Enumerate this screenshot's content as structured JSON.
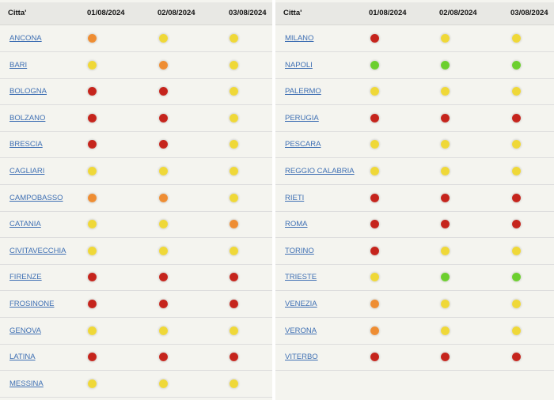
{
  "colors": {
    "red": "#c5241c",
    "orange": "#ee8d33",
    "yellow": "#efd838",
    "green": "#6ccf2e"
  },
  "header": {
    "city": "Citta'",
    "dates": [
      "01/08/2024",
      "02/08/2024",
      "03/08/2024"
    ]
  },
  "left": [
    {
      "city": "ANCONA",
      "levels": [
        "orange",
        "yellow",
        "yellow"
      ]
    },
    {
      "city": "BARI",
      "levels": [
        "yellow",
        "orange",
        "yellow"
      ]
    },
    {
      "city": "BOLOGNA",
      "levels": [
        "red",
        "red",
        "yellow"
      ]
    },
    {
      "city": "BOLZANO",
      "levels": [
        "red",
        "red",
        "yellow"
      ]
    },
    {
      "city": "BRESCIA",
      "levels": [
        "red",
        "red",
        "yellow"
      ]
    },
    {
      "city": "CAGLIARI",
      "levels": [
        "yellow",
        "yellow",
        "yellow"
      ]
    },
    {
      "city": "CAMPOBASSO",
      "levels": [
        "orange",
        "orange",
        "yellow"
      ]
    },
    {
      "city": "CATANIA",
      "levels": [
        "yellow",
        "yellow",
        "orange"
      ]
    },
    {
      "city": "CIVITAVECCHIA",
      "levels": [
        "yellow",
        "yellow",
        "yellow"
      ]
    },
    {
      "city": "FIRENZE",
      "levels": [
        "red",
        "red",
        "red"
      ]
    },
    {
      "city": "FROSINONE",
      "levels": [
        "red",
        "red",
        "red"
      ]
    },
    {
      "city": "GENOVA",
      "levels": [
        "yellow",
        "yellow",
        "yellow"
      ]
    },
    {
      "city": "LATINA",
      "levels": [
        "red",
        "red",
        "red"
      ]
    },
    {
      "city": "MESSINA",
      "levels": [
        "yellow",
        "yellow",
        "yellow"
      ]
    }
  ],
  "right": [
    {
      "city": "MILANO",
      "levels": [
        "red",
        "yellow",
        "yellow"
      ]
    },
    {
      "city": "NAPOLI",
      "levels": [
        "green",
        "green",
        "green"
      ]
    },
    {
      "city": "PALERMO",
      "levels": [
        "yellow",
        "yellow",
        "yellow"
      ]
    },
    {
      "city": "PERUGIA",
      "levels": [
        "red",
        "red",
        "red"
      ]
    },
    {
      "city": "PESCARA",
      "levels": [
        "yellow",
        "yellow",
        "yellow"
      ]
    },
    {
      "city": "REGGIO CALABRIA",
      "levels": [
        "yellow",
        "yellow",
        "yellow"
      ]
    },
    {
      "city": "RIETI",
      "levels": [
        "red",
        "red",
        "red"
      ]
    },
    {
      "city": "ROMA",
      "levels": [
        "red",
        "red",
        "red"
      ]
    },
    {
      "city": "TORINO",
      "levels": [
        "red",
        "yellow",
        "yellow"
      ]
    },
    {
      "city": "TRIESTE",
      "levels": [
        "yellow",
        "green",
        "green"
      ]
    },
    {
      "city": "VENEZIA",
      "levels": [
        "orange",
        "yellow",
        "yellow"
      ]
    },
    {
      "city": "VERONA",
      "levels": [
        "orange",
        "yellow",
        "yellow"
      ]
    },
    {
      "city": "VITERBO",
      "levels": [
        "red",
        "red",
        "red"
      ]
    }
  ]
}
